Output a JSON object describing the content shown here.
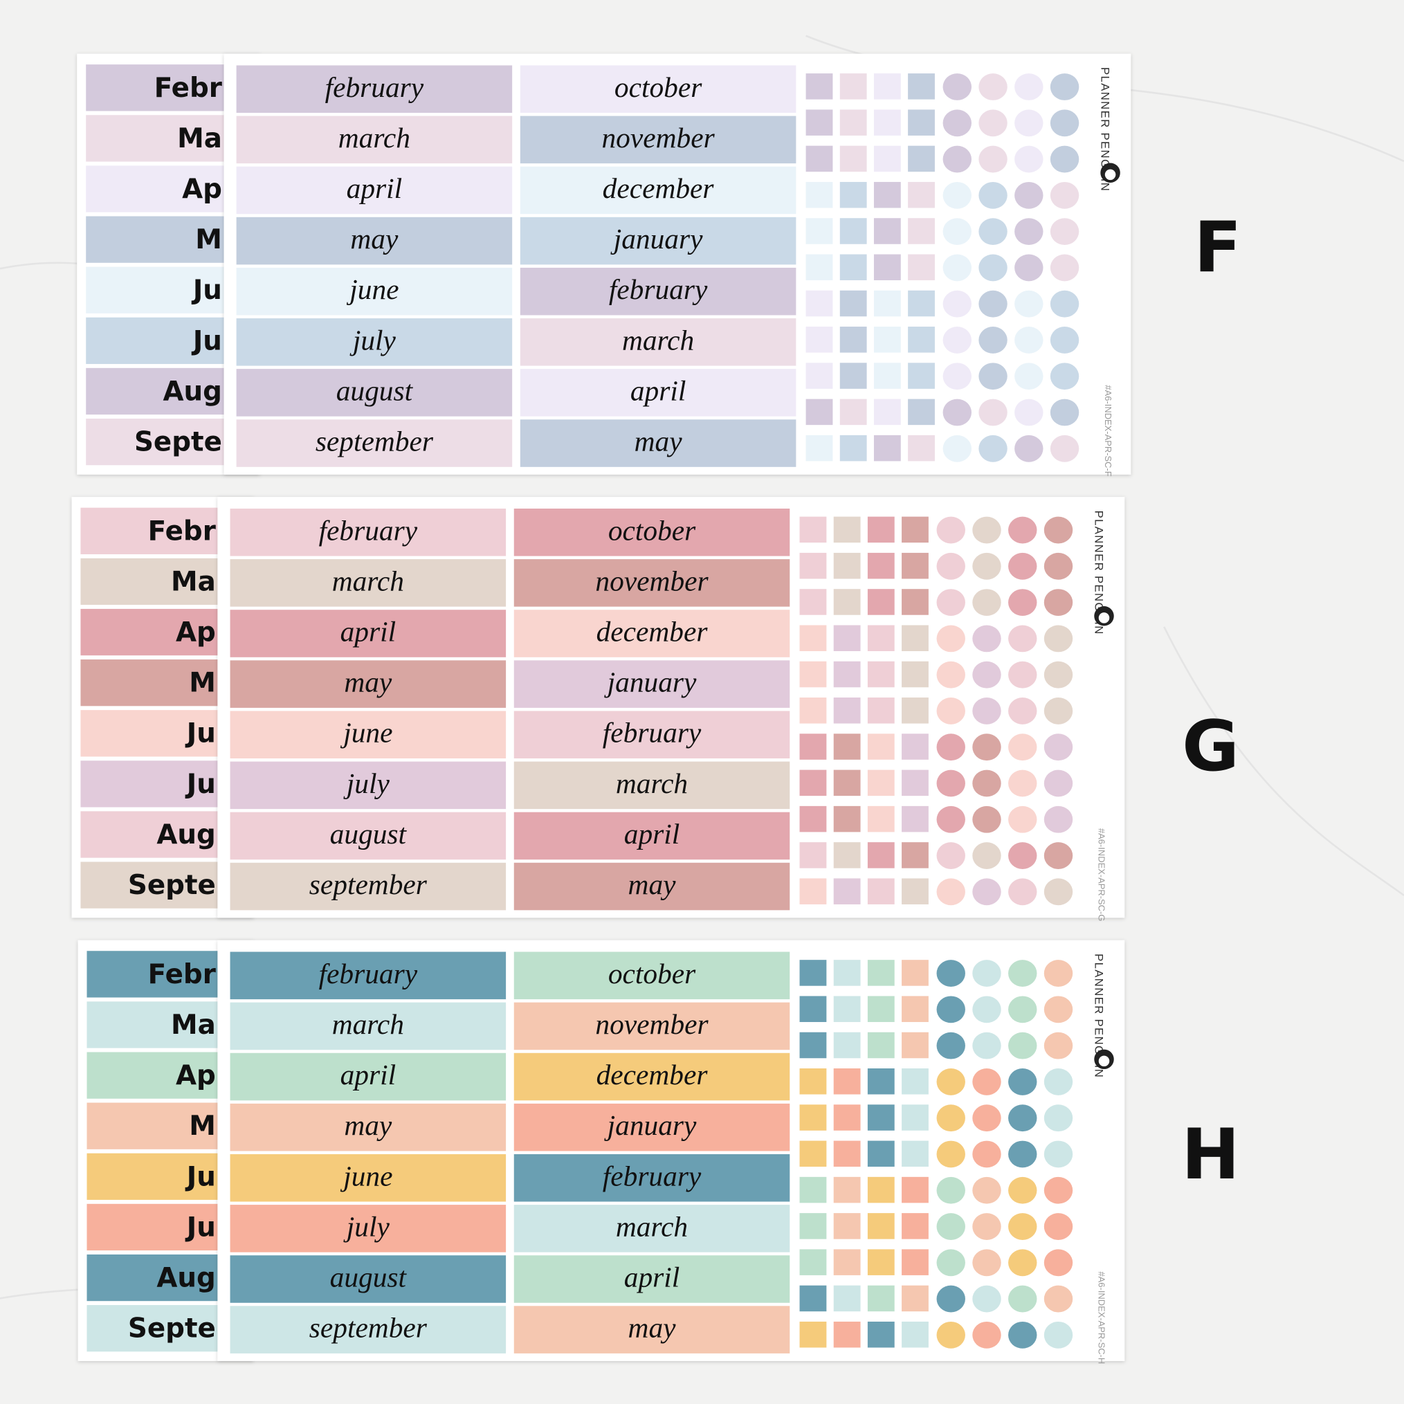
{
  "sheets": [
    {
      "letter": "F",
      "brand": "PLANNER PENGUIN",
      "code": "#A6-INDEX-APR-SC-F",
      "back_labels": [
        "Febr",
        "Ma",
        "Ap",
        "M",
        "Ju",
        "Ju",
        "Aug",
        "Septe"
      ],
      "columns": [
        [
          "february",
          "march",
          "april",
          "may",
          "june",
          "july",
          "august",
          "september"
        ],
        [
          "october",
          "november",
          "december",
          "january",
          "february",
          "march",
          "april",
          "may"
        ]
      ]
    },
    {
      "letter": "G",
      "brand": "PLANNER PENGUIN",
      "code": "#A6-INDEX-APR-SC-G",
      "back_labels": [
        "Febr",
        "Ma",
        "Ap",
        "M",
        "Ju",
        "Ju",
        "Aug",
        "Septe"
      ],
      "columns": [
        [
          "february",
          "march",
          "april",
          "may",
          "june",
          "july",
          "august",
          "september"
        ],
        [
          "october",
          "november",
          "december",
          "january",
          "february",
          "march",
          "april",
          "may"
        ]
      ]
    },
    {
      "letter": "H",
      "brand": "PLANNER PENGUIN",
      "code": "#A6-INDEX-APR-SC-H",
      "back_labels": [
        "Febr",
        "Ma",
        "Ap",
        "M",
        "Ju",
        "Ju",
        "Aug",
        "Septe"
      ],
      "columns": [
        [
          "february",
          "march",
          "april",
          "may",
          "june",
          "july",
          "august",
          "september"
        ],
        [
          "october",
          "november",
          "december",
          "january",
          "february",
          "march",
          "april",
          "may"
        ]
      ]
    }
  ]
}
